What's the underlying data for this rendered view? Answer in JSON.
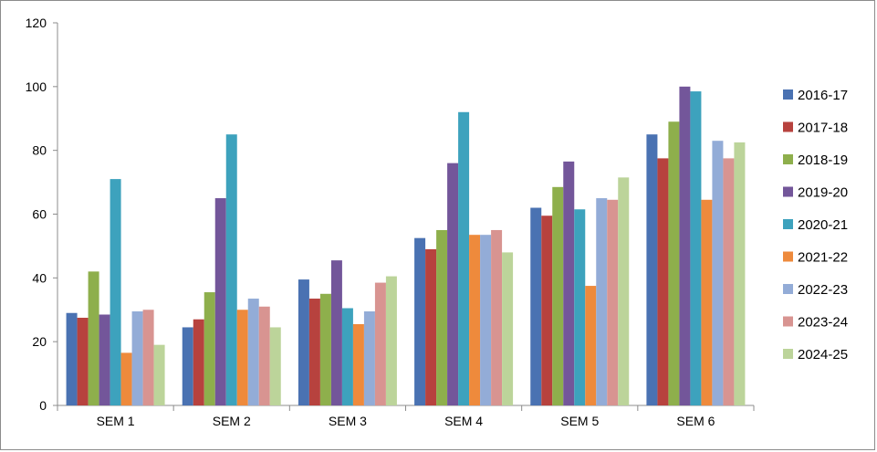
{
  "chart_data": {
    "type": "bar",
    "categories": [
      "SEM 1",
      "SEM 2",
      "SEM 3",
      "SEM 4",
      "SEM 5",
      "SEM 6"
    ],
    "ylim": [
      0,
      120
    ],
    "yticks": [
      0,
      20,
      40,
      60,
      80,
      100,
      120
    ],
    "grid": false,
    "legend_position": "right",
    "series": [
      {
        "name": "2016-17",
        "color": "#4a72b2",
        "values": [
          29,
          24.5,
          39.5,
          52.5,
          62,
          85
        ]
      },
      {
        "name": "2017-18",
        "color": "#b7423e",
        "values": [
          27.5,
          27,
          33.5,
          49,
          59.5,
          77.5
        ]
      },
      {
        "name": "2018-19",
        "color": "#8eaf4c",
        "values": [
          42,
          35.5,
          35,
          55,
          68.5,
          89
        ]
      },
      {
        "name": "2019-20",
        "color": "#73569a",
        "values": [
          28.5,
          65,
          45.5,
          76,
          76.5,
          100
        ]
      },
      {
        "name": "2020-21",
        "color": "#3da2bd",
        "values": [
          71,
          85,
          30.5,
          92,
          61.5,
          98.5
        ]
      },
      {
        "name": "2021-22",
        "color": "#ee8a3c",
        "values": [
          16.5,
          30,
          25.5,
          53.5,
          37.5,
          64.5
        ]
      },
      {
        "name": "2022-23",
        "color": "#93acd7",
        "values": [
          29.5,
          33.5,
          29.5,
          53.5,
          65,
          83
        ]
      },
      {
        "name": "2023-24",
        "color": "#d89491",
        "values": [
          30,
          31,
          38.5,
          55,
          64.5,
          77.5
        ]
      },
      {
        "name": "2024-25",
        "color": "#bcd49a",
        "values": [
          19,
          24.5,
          40.5,
          48,
          71.5,
          82.5
        ]
      }
    ]
  }
}
